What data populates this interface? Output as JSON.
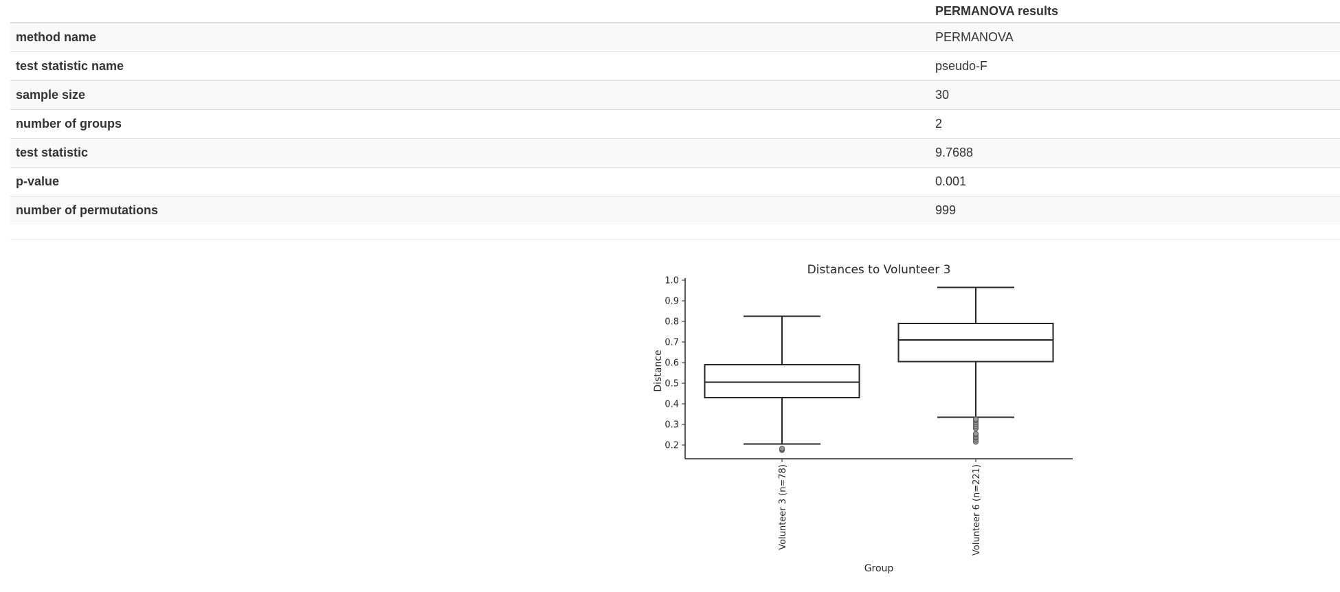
{
  "table": {
    "header": [
      "",
      "PERMANOVA results"
    ],
    "rows": [
      {
        "label": "method name",
        "value": "PERMANOVA"
      },
      {
        "label": "test statistic name",
        "value": "pseudo-F"
      },
      {
        "label": "sample size",
        "value": "30"
      },
      {
        "label": "number of groups",
        "value": "2"
      },
      {
        "label": "test statistic",
        "value": "9.7688"
      },
      {
        "label": "p-value",
        "value": "0.001"
      },
      {
        "label": "number of permutations",
        "value": "999"
      }
    ]
  },
  "chart_data": {
    "type": "box",
    "title": "Distances to Volunteer 3",
    "xlabel": "Group",
    "ylabel": "Distance",
    "ylim": [
      0.15,
      1.0
    ],
    "yticks": [
      "0.2",
      "0.3",
      "0.4",
      "0.5",
      "0.6",
      "0.7",
      "0.8",
      "0.9",
      "1.0"
    ],
    "grid": false,
    "categories": [
      "Volunteer 3 (n=78)",
      "Volunteer 6 (n=221)"
    ],
    "boxes": [
      {
        "whisker_low": 0.205,
        "q1": 0.43,
        "median": 0.505,
        "q3": 0.59,
        "whisker_high": 0.825,
        "outliers": [
          0.175,
          0.18,
          0.183
        ]
      },
      {
        "whisker_low": 0.335,
        "q1": 0.605,
        "median": 0.71,
        "q3": 0.79,
        "whisker_high": 0.965,
        "outliers": [
          0.215,
          0.225,
          0.235,
          0.24,
          0.25,
          0.255,
          0.28,
          0.29,
          0.3,
          0.31,
          0.32,
          0.325
        ]
      }
    ],
    "colors": {
      "line": "#262626",
      "outlier_fill": "#999999"
    }
  }
}
